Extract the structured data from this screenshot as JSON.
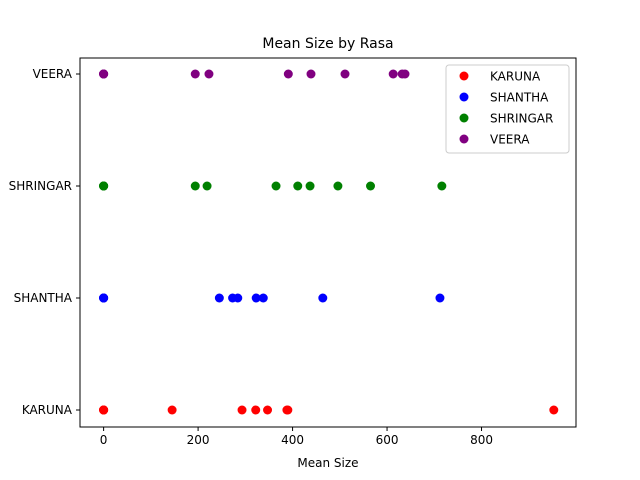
{
  "chart_data": {
    "type": "scatter",
    "title": "Mean Size by Rasa",
    "xlabel": "Mean Size",
    "ylabel": "",
    "xlim": [
      -50,
      1000
    ],
    "x_ticks": [
      0,
      200,
      400,
      600,
      800
    ],
    "categories": [
      "KARUNA",
      "SHANTHA",
      "SHRINGAR",
      "VEERA"
    ],
    "grid": false,
    "legend_position": "top-right",
    "series": [
      {
        "name": "KARUNA",
        "color": "#ff0000",
        "category": "KARUNA",
        "x": [
          0,
          0,
          0,
          0,
          0,
          145,
          293,
          322,
          347,
          388,
          390,
          953
        ]
      },
      {
        "name": "SHANTHA",
        "color": "#0000ff",
        "category": "SHANTHA",
        "x": [
          0,
          0,
          0,
          0,
          0,
          245,
          273,
          284,
          323,
          338,
          464,
          712
        ]
      },
      {
        "name": "SHRINGAR",
        "color": "#008000",
        "category": "SHRINGAR",
        "x": [
          0,
          0,
          0,
          0,
          0,
          194,
          219,
          365,
          411,
          437,
          496,
          565,
          716
        ]
      },
      {
        "name": "VEERA",
        "color": "#800080",
        "category": "VEERA",
        "x": [
          0,
          0,
          0,
          0,
          0,
          194,
          223,
          391,
          439,
          511,
          613,
          632,
          638
        ]
      }
    ]
  }
}
